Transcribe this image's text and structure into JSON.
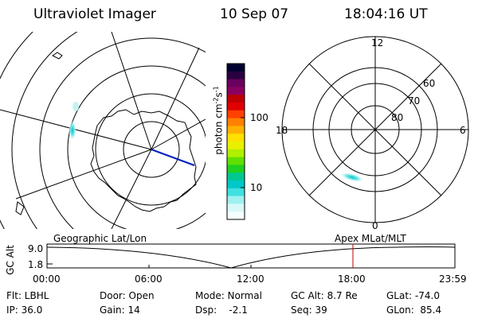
{
  "header": {
    "title": "Ultraviolet Imager",
    "date": "10 Sep 07",
    "time": "18:04:16 UT"
  },
  "colorbar": {
    "label": "photon cm",
    "label_sup1": "-2",
    "label_mid": "s",
    "label_sup2": "-1",
    "ticks": [
      "100",
      "10"
    ],
    "colors": [
      "#000030",
      "#2a0040",
      "#6a0060",
      "#8a0060",
      "#c00000",
      "#e00000",
      "#ff4000",
      "#ff8000",
      "#ffb000",
      "#ffe000",
      "#e8f000",
      "#b0f000",
      "#60e000",
      "#20d020",
      "#00c890",
      "#00c8c8",
      "#40e0e0",
      "#a0f0f0",
      "#d8f8f8",
      "#f4ffff"
    ]
  },
  "mlt_plot": {
    "hour_labels": [
      "12",
      "6",
      "0",
      "18"
    ],
    "lat_labels": [
      "60",
      "70",
      "80"
    ]
  },
  "altitude_plot": {
    "left_label": "Geographic Lat/Lon",
    "right_label": "Apex MLat/MLT",
    "y_axis_label": "GC Alt",
    "y_ticks": [
      "9.0",
      "1.8"
    ],
    "x_ticks": [
      "00:00",
      "06:00",
      "12:00",
      "18:00",
      "23:59"
    ],
    "marker_color": "#c00000"
  },
  "info": {
    "filter": "Flt: LBHL",
    "ip": "IP: 36.0",
    "door": "Door: Open",
    "gain": "Gain: 14",
    "mode": "Mode: Normal",
    "dsp": "Dsp:    -2.1",
    "gc_alt": "GC Alt: 8.7 Re",
    "seq": "Seq: 39",
    "glat": "GLat: -74.0",
    "glon": "GLon:  85.4"
  }
}
